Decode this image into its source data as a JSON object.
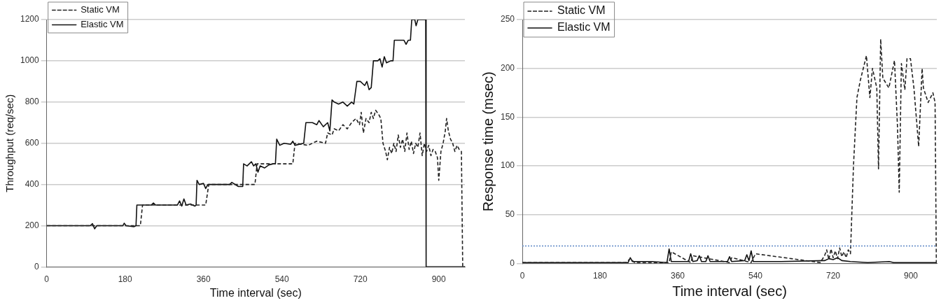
{
  "chart_data": [
    {
      "type": "line",
      "xlabel": "Time interval (sec)",
      "ylabel": "Throughput (req/sec)",
      "xlim": [
        0,
        960
      ],
      "xticks": [
        0,
        180,
        360,
        540,
        720,
        900
      ],
      "ylim": [
        0,
        1200
      ],
      "yticks": [
        0,
        200,
        400,
        600,
        800,
        1000,
        1200
      ],
      "grid": "y",
      "legend": "top left",
      "marker": "none",
      "series": [
        {
          "name": "Static VM",
          "color": "#222222",
          "line_style": "dashed",
          "x": [
            0,
            215,
            220,
            365,
            372,
            478,
            483,
            565,
            570,
            600,
            620,
            640,
            645,
            655,
            660,
            670,
            680,
            690,
            700,
            710,
            718,
            722,
            727,
            733,
            740,
            745,
            750,
            755,
            762,
            767,
            772,
            778,
            782,
            787,
            792,
            797,
            802,
            807,
            812,
            817,
            822,
            827,
            832,
            837,
            842,
            847,
            852,
            857,
            862,
            867,
            872,
            877,
            882,
            887,
            892,
            897,
            900,
            905,
            910,
            915,
            918,
            922,
            927,
            932,
            937,
            942,
            947,
            952,
            955,
            960
          ],
          "values": [
            200,
            200,
            300,
            300,
            400,
            400,
            500,
            500,
            600,
            590,
            610,
            600,
            650,
            640,
            670,
            660,
            690,
            670,
            700,
            720,
            690,
            750,
            650,
            720,
            700,
            750,
            720,
            760,
            740,
            720,
            600,
            560,
            520,
            580,
            550,
            600,
            560,
            640,
            580,
            620,
            560,
            650,
            570,
            610,
            550,
            600,
            580,
            650,
            540,
            600,
            560,
            590,
            540,
            570,
            560,
            530,
            420,
            560,
            600,
            660,
            720,
            660,
            620,
            600,
            560,
            590,
            570,
            560,
            0,
            0
          ]
        },
        {
          "name": "Elastic VM",
          "color": "#111111",
          "line_style": "solid",
          "x": [
            0,
            100,
            105,
            110,
            115,
            175,
            178,
            182,
            200,
            205,
            207,
            240,
            245,
            250,
            300,
            305,
            310,
            315,
            320,
            330,
            340,
            343,
            345,
            350,
            360,
            365,
            370,
            420,
            425,
            440,
            450,
            452,
            460,
            465,
            470,
            475,
            480,
            485,
            490,
            500,
            510,
            520,
            525,
            528,
            535,
            545,
            560,
            565,
            570,
            590,
            595,
            610,
            620,
            625,
            635,
            645,
            650,
            655,
            660,
            670,
            680,
            690,
            700,
            705,
            712,
            720,
            730,
            735,
            740,
            745,
            750,
            760,
            765,
            770,
            775,
            780,
            790,
            795,
            798,
            820,
            825,
            830,
            835,
            838,
            845,
            848,
            852,
            865,
            870,
            871,
            960
          ],
          "values": [
            200,
            200,
            210,
            185,
            200,
            200,
            212,
            200,
            195,
            200,
            300,
            300,
            310,
            300,
            300,
            320,
            295,
            330,
            300,
            305,
            295,
            300,
            420,
            400,
            405,
            380,
            400,
            400,
            410,
            390,
            390,
            500,
            490,
            500,
            510,
            490,
            500,
            460,
            490,
            480,
            495,
            500,
            500,
            620,
            590,
            600,
            595,
            610,
            590,
            600,
            700,
            700,
            690,
            710,
            680,
            700,
            660,
            810,
            800,
            790,
            800,
            780,
            800,
            790,
            900,
            900,
            880,
            900,
            860,
            870,
            1000,
            1000,
            1010,
            970,
            1020,
            990,
            1000,
            1000,
            1100,
            1100,
            1080,
            1100,
            1100,
            1200,
            1200,
            1170,
            1200,
            1200,
            1200,
            0,
            0
          ]
        }
      ]
    },
    {
      "type": "line",
      "xlabel": "Time interval (sec)",
      "ylabel": "Response time (msec)",
      "xlim": [
        0,
        960
      ],
      "xticks": [
        0,
        180,
        360,
        540,
        720,
        900
      ],
      "ylim": [
        0,
        250
      ],
      "yticks": [
        0,
        50,
        100,
        150,
        200,
        250
      ],
      "grid": "y",
      "legend": "top left",
      "marker": "none",
      "ref_lines": [
        {
          "axis": "y",
          "value": 18,
          "color": "#5b86c5",
          "line_style": "dotted"
        }
      ],
      "series": [
        {
          "name": "Static VM",
          "color": "#222222",
          "line_style": "dashed",
          "x": [
            0,
            240,
            250,
            260,
            340,
            345,
            390,
            395,
            480,
            485,
            530,
            540,
            690,
            700,
            705,
            710,
            715,
            720,
            725,
            730,
            735,
            740,
            745,
            750,
            755,
            760,
            767,
            775,
            783,
            797,
            805,
            811,
            821,
            825,
            830,
            835,
            849,
            862,
            869,
            873,
            878,
            886,
            891,
            899,
            907,
            918,
            926,
            929,
            940,
            951,
            956,
            959,
            960
          ],
          "values": [
            1,
            1,
            5,
            1,
            1,
            12,
            1,
            8,
            1,
            6,
            1,
            10,
            1,
            8,
            14,
            4,
            15,
            6,
            13,
            5,
            16,
            7,
            12,
            6,
            14,
            10,
            100,
            170,
            188,
            213,
            170,
            200,
            180,
            97,
            230,
            190,
            180,
            208,
            140,
            73,
            205,
            178,
            210,
            210,
            180,
            120,
            200,
            180,
            165,
            175,
            165,
            0,
            0
          ]
        },
        {
          "name": "Elastic VM",
          "color": "#111111",
          "line_style": "solid",
          "x": [
            0,
            245,
            250,
            255,
            300,
            335,
            340,
            345,
            385,
            390,
            395,
            405,
            410,
            415,
            425,
            430,
            435,
            475,
            480,
            485,
            515,
            520,
            525,
            530,
            535,
            600,
            700,
            710,
            720,
            730,
            740,
            760,
            800,
            850,
            860,
            900,
            960
          ],
          "values": [
            1,
            1,
            6,
            2,
            2,
            1,
            15,
            2,
            2,
            10,
            2,
            3,
            8,
            2,
            2,
            8,
            2,
            2,
            7,
            2,
            3,
            9,
            3,
            13,
            2,
            2,
            3,
            5,
            4,
            6,
            3,
            2,
            1,
            2,
            1,
            1,
            1
          ]
        }
      ]
    }
  ]
}
